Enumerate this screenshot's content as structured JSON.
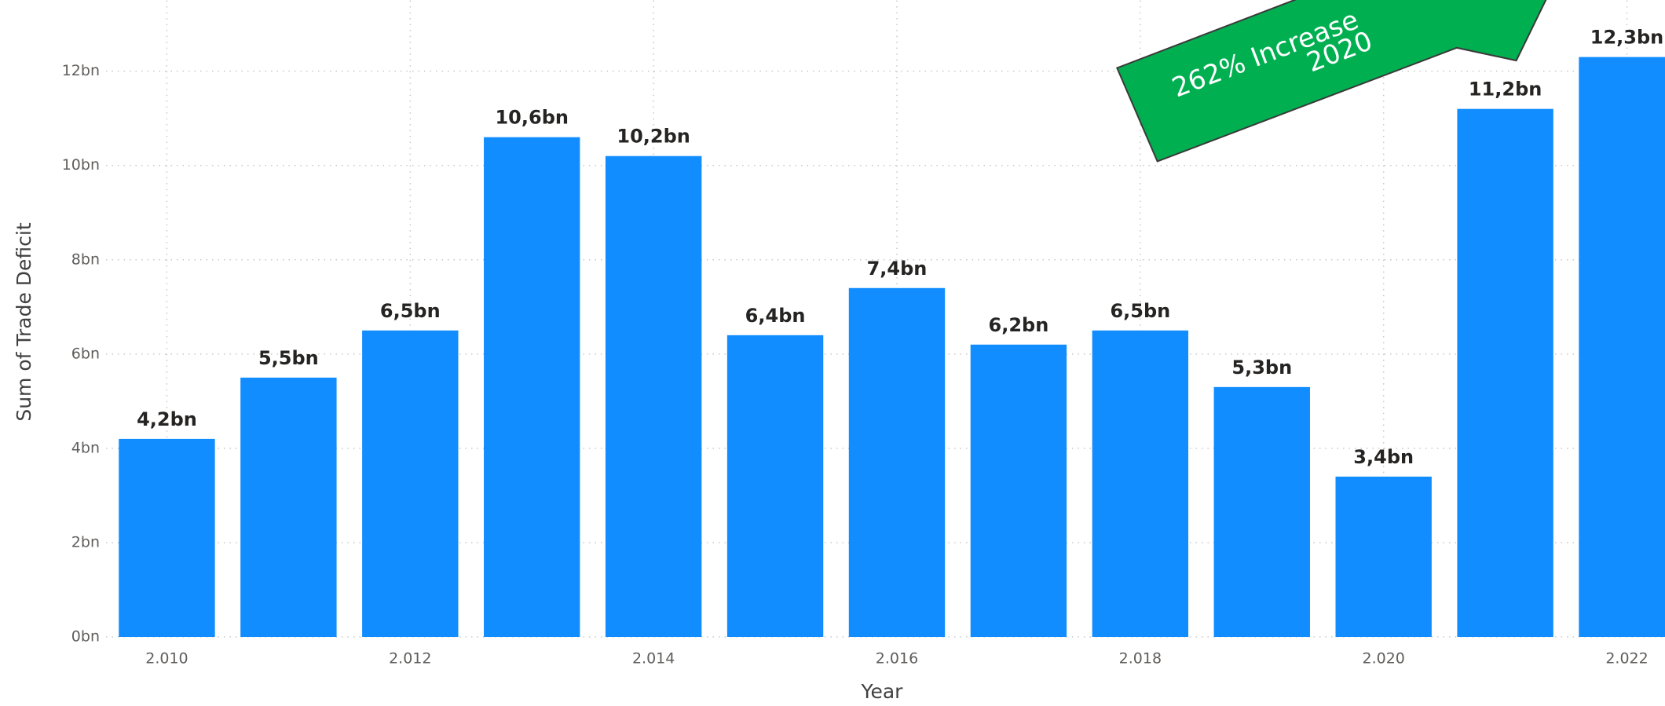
{
  "chart_data": {
    "type": "bar",
    "x_label": "Year",
    "y_label": "Sum of Trade Deficit",
    "annotation": [
      "262% Increase",
      "2020"
    ],
    "x": [
      2010,
      2011,
      2012,
      2013,
      2014,
      2015,
      2016,
      2017,
      2018,
      2019,
      2020,
      2021,
      2022
    ],
    "values": [
      4.2,
      5.5,
      6.5,
      10.6,
      10.2,
      6.4,
      7.4,
      6.2,
      6.5,
      5.3,
      3.4,
      11.2,
      12.3
    ],
    "value_labels": [
      "4,2bn",
      "5,5bn",
      "6,5bn",
      "10,6bn",
      "10,2bn",
      "6,4bn",
      "7,4bn",
      "6,2bn",
      "6,5bn",
      "5,3bn",
      "3,4bn",
      "11,2bn",
      "12,3bn"
    ],
    "color": "#118dff",
    "xlim": [
      2009.5,
      2022.5
    ],
    "xticks": [
      {
        "value": 2010,
        "label": "2.010"
      },
      {
        "value": 2012,
        "label": "2.012"
      },
      {
        "value": 2014,
        "label": "2.014"
      },
      {
        "value": 2016,
        "label": "2.016"
      },
      {
        "value": 2018,
        "label": "2.018"
      },
      {
        "value": 2020,
        "label": "2.020"
      },
      {
        "value": 2022,
        "label": "2.022"
      }
    ],
    "ylim": [
      0,
      13.5
    ],
    "yticks": [
      {
        "value": 0,
        "label": "0bn"
      },
      {
        "value": 2,
        "label": "2bn"
      },
      {
        "value": 4,
        "label": "4bn"
      },
      {
        "value": 6,
        "label": "6bn"
      },
      {
        "value": 8,
        "label": "8bn"
      },
      {
        "value": 10,
        "label": "10bn"
      },
      {
        "value": 12,
        "label": "12bn"
      }
    ],
    "grid": true
  }
}
